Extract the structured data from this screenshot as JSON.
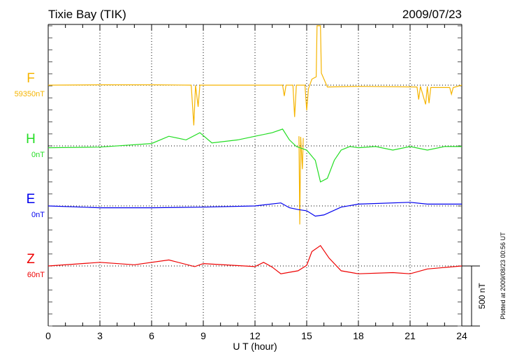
{
  "chart_data": {
    "type": "line",
    "title": "Tixie Bay (TIK)",
    "date": "2009/07/23",
    "xlabel": "U T (hour)",
    "xlim": [
      0,
      24
    ],
    "xticks": [
      "0",
      "3",
      "6",
      "9",
      "12",
      "15",
      "18",
      "21",
      "24"
    ],
    "scale_bar_label": "500 nT",
    "scale_bar_value_nT": 500,
    "footnote": "Plotted at 2009/08/23 00:56 UT",
    "grid": "dotted vertical every 3 hours, dotted baseline per component",
    "series": [
      {
        "name": "F",
        "baseline_label": "59350nT",
        "color": "#f5b400",
        "points": [
          [
            0,
            0
          ],
          [
            3,
            3
          ],
          [
            6,
            3
          ],
          [
            8.3,
            0
          ],
          [
            8.45,
            -335
          ],
          [
            8.55,
            0
          ],
          [
            8.7,
            -180
          ],
          [
            8.8,
            0
          ],
          [
            12,
            0
          ],
          [
            13.6,
            0
          ],
          [
            13.7,
            -90
          ],
          [
            13.8,
            0
          ],
          [
            14.2,
            0
          ],
          [
            14.3,
            -265
          ],
          [
            14.4,
            0
          ],
          [
            14.9,
            0
          ],
          [
            15.0,
            -210
          ],
          [
            15.1,
            -30
          ],
          [
            15.3,
            50
          ],
          [
            15.55,
            70
          ],
          [
            15.6,
            495
          ],
          [
            15.8,
            495
          ],
          [
            15.85,
            100
          ],
          [
            16.2,
            -15
          ],
          [
            18,
            -10
          ],
          [
            21.4,
            -15
          ],
          [
            21.5,
            -120
          ],
          [
            21.6,
            -10
          ],
          [
            21.9,
            -160
          ],
          [
            22.0,
            -10
          ],
          [
            22.1,
            -150
          ],
          [
            22.2,
            -20
          ],
          [
            23.3,
            -20
          ],
          [
            23.4,
            -75
          ],
          [
            23.5,
            -20
          ],
          [
            24,
            0
          ],
          null,
          [
            14.55,
            -425
          ],
          [
            14.6,
            -1160
          ],
          [
            14.65,
            -430
          ],
          [
            14.75,
            -700
          ],
          [
            14.8,
            -440
          ]
        ]
      },
      {
        "name": "H",
        "baseline_label": "0nT",
        "color": "#22dd22",
        "points": [
          [
            0,
            -15
          ],
          [
            3,
            -10
          ],
          [
            6,
            20
          ],
          [
            7,
            80
          ],
          [
            8,
            50
          ],
          [
            8.8,
            110
          ],
          [
            9.5,
            25
          ],
          [
            11,
            50
          ],
          [
            12,
            80
          ],
          [
            13,
            110
          ],
          [
            13.6,
            140
          ],
          [
            14,
            50
          ],
          [
            14.4,
            -5
          ],
          [
            15,
            -35
          ],
          [
            15.5,
            -120
          ],
          [
            15.8,
            -300
          ],
          [
            16.2,
            -270
          ],
          [
            16.6,
            -120
          ],
          [
            17,
            -35
          ],
          [
            17.5,
            -5
          ],
          [
            18,
            -15
          ],
          [
            19,
            -5
          ],
          [
            20,
            -35
          ],
          [
            21,
            -5
          ],
          [
            22,
            -35
          ],
          [
            23,
            -5
          ],
          [
            24,
            -5
          ]
        ]
      },
      {
        "name": "E",
        "baseline_label": "0nT",
        "color": "#0000ee",
        "points": [
          [
            0,
            0
          ],
          [
            3,
            -15
          ],
          [
            6,
            -15
          ],
          [
            9,
            -10
          ],
          [
            12,
            0
          ],
          [
            13.5,
            25
          ],
          [
            14,
            -15
          ],
          [
            14.5,
            -30
          ],
          [
            15,
            -40
          ],
          [
            15.5,
            -85
          ],
          [
            16,
            -75
          ],
          [
            17,
            -10
          ],
          [
            18,
            15
          ],
          [
            21,
            30
          ],
          [
            22,
            15
          ],
          [
            24,
            15
          ]
        ]
      },
      {
        "name": "Z",
        "baseline_label": "60nT",
        "color": "#ee0000",
        "points": [
          [
            0,
            0
          ],
          [
            3,
            30
          ],
          [
            5,
            10
          ],
          [
            7,
            50
          ],
          [
            8.5,
            -5
          ],
          [
            9,
            20
          ],
          [
            12,
            -5
          ],
          [
            12.5,
            30
          ],
          [
            13,
            -10
          ],
          [
            13.5,
            -65
          ],
          [
            14.5,
            -40
          ],
          [
            15,
            5
          ],
          [
            15.3,
            120
          ],
          [
            15.8,
            170
          ],
          [
            16.3,
            65
          ],
          [
            17,
            -40
          ],
          [
            18,
            -65
          ],
          [
            20,
            -55
          ],
          [
            21,
            -65
          ],
          [
            22,
            -25
          ],
          [
            24,
            0
          ]
        ]
      }
    ]
  }
}
